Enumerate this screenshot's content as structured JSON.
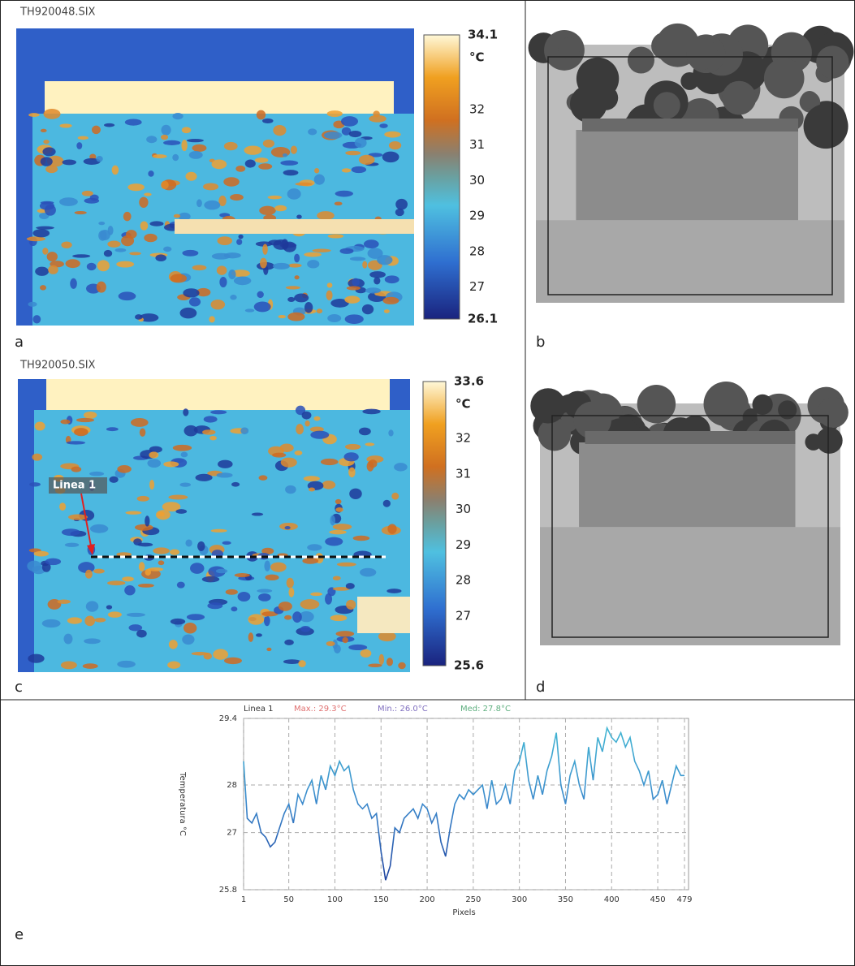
{
  "panels": {
    "a": {
      "file": "TH920048.SIX",
      "label": "a",
      "colorbar": {
        "max": 34.1,
        "unit": "°C",
        "ticks": [
          32,
          31,
          30,
          29,
          28,
          27
        ],
        "min": 26.1
      }
    },
    "b": {
      "label": "b"
    },
    "c": {
      "file": "TH920050.SIX",
      "label": "c",
      "annotation": "Linea 1",
      "colorbar": {
        "max": 33.6,
        "unit": "°C",
        "ticks": [
          32,
          31,
          30,
          29,
          28,
          27
        ],
        "min": 25.6
      }
    },
    "d": {
      "label": "d"
    },
    "e": {
      "label": "e"
    }
  },
  "chart_data": {
    "type": "line",
    "stats": [
      {
        "text": "Max.: 29.3°C",
        "color": "#e07070"
      },
      {
        "text": "Min.: 26.0°C",
        "color": "#8070c0"
      },
      {
        "text": "Med: 27.8°C",
        "color": "#60b080"
      }
    ],
    "ylabel": "Temperatura °C",
    "xlabel": "Pixels",
    "x": [
      1,
      5,
      10,
      15,
      20,
      25,
      30,
      35,
      40,
      45,
      50,
      55,
      60,
      65,
      70,
      75,
      80,
      85,
      90,
      95,
      100,
      105,
      110,
      115,
      120,
      125,
      130,
      135,
      140,
      145,
      150,
      155,
      160,
      165,
      170,
      175,
      180,
      185,
      190,
      195,
      200,
      205,
      210,
      215,
      220,
      225,
      230,
      235,
      240,
      245,
      250,
      255,
      260,
      265,
      270,
      275,
      280,
      285,
      290,
      295,
      300,
      305,
      310,
      315,
      320,
      325,
      330,
      335,
      340,
      345,
      350,
      355,
      360,
      365,
      370,
      375,
      380,
      385,
      390,
      395,
      400,
      405,
      410,
      415,
      420,
      425,
      430,
      435,
      440,
      445,
      450,
      455,
      460,
      465,
      470,
      475,
      479
    ],
    "series": [
      {
        "name": "Linea 1",
        "color": "#44bcd4",
        "values": [
          28.5,
          27.3,
          27.2,
          27.4,
          27.0,
          26.9,
          26.7,
          26.8,
          27.1,
          27.4,
          27.6,
          27.2,
          27.8,
          27.6,
          27.9,
          28.1,
          27.6,
          28.2,
          27.9,
          28.4,
          28.2,
          28.5,
          28.3,
          28.4,
          27.9,
          27.6,
          27.5,
          27.6,
          27.3,
          27.4,
          26.6,
          26.0,
          26.3,
          27.1,
          27.0,
          27.3,
          27.4,
          27.5,
          27.3,
          27.6,
          27.5,
          27.2,
          27.4,
          26.8,
          26.5,
          27.1,
          27.6,
          27.8,
          27.7,
          27.9,
          27.8,
          27.9,
          28.0,
          27.5,
          28.1,
          27.6,
          27.7,
          28.0,
          27.6,
          28.3,
          28.5,
          28.9,
          28.1,
          27.7,
          28.2,
          27.8,
          28.3,
          28.6,
          29.1,
          28.0,
          27.6,
          28.2,
          28.5,
          28.0,
          27.7,
          28.8,
          28.1,
          29.0,
          28.7,
          29.2,
          29.0,
          28.9,
          29.1,
          28.8,
          29.0,
          28.5,
          28.3,
          28.0,
          28.3,
          27.7,
          27.8,
          28.1,
          27.6,
          28.0,
          28.4,
          28.2,
          28.2
        ]
      }
    ],
    "xlim": [
      1,
      479
    ],
    "ylim": [
      25.8,
      29.4
    ],
    "xticks": [
      1,
      50,
      100,
      150,
      200,
      250,
      300,
      350,
      400,
      450,
      479
    ],
    "yticks": [
      25.8,
      27,
      28,
      29.4
    ],
    "grid": true
  }
}
